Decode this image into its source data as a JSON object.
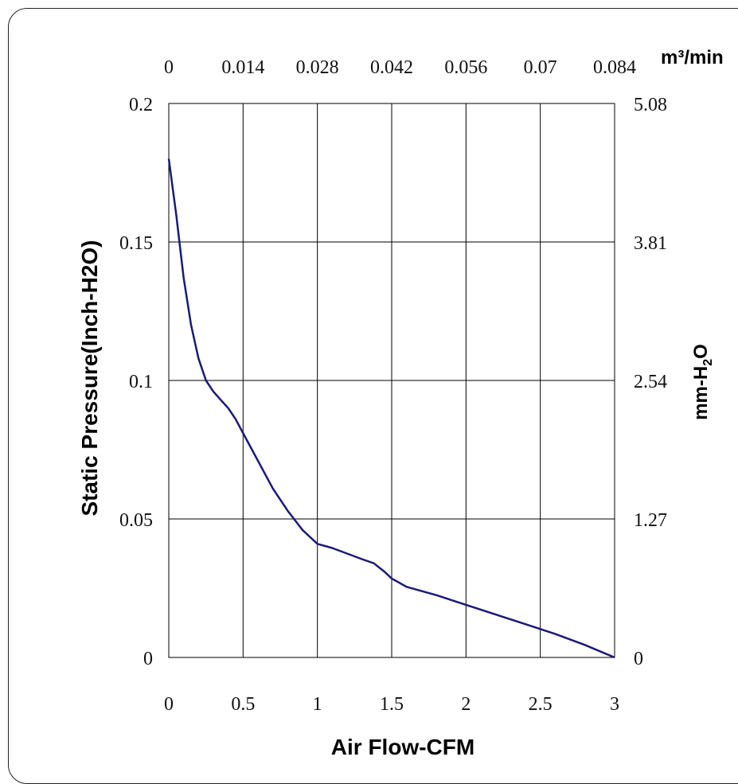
{
  "chart_data": {
    "type": "line",
    "xlabel": "Air Flow-CFM",
    "ylabel": "Static Pressure(Inch-H2O)",
    "x2label": "m³/min",
    "y2label_parts": [
      "mm-H",
      "2",
      "O"
    ],
    "xlim": [
      0,
      3
    ],
    "ylim": [
      0,
      0.2
    ],
    "x_ticks": [
      "0",
      "0.5",
      "1",
      "1.5",
      "2",
      "2.5",
      "3"
    ],
    "y_ticks": [
      "0",
      "0.05",
      "0.1",
      "0.15",
      "0.2"
    ],
    "x2_ticks": [
      "0",
      "0.014",
      "0.028",
      "0.042",
      "0.056",
      "0.07",
      "0.084"
    ],
    "y2_ticks": [
      "0",
      "1.27",
      "2.54",
      "3.81",
      "5.08"
    ],
    "grid": true,
    "line_color": "#1a1a7a",
    "series": [
      {
        "x": [
          0,
          0.05,
          0.1,
          0.15,
          0.2,
          0.25,
          0.3,
          0.35,
          0.4,
          0.45,
          0.5,
          0.6,
          0.7,
          0.8,
          0.9,
          1.0,
          1.1,
          1.2,
          1.3,
          1.38,
          1.45,
          1.5,
          1.6,
          1.8,
          2.0,
          2.2,
          2.4,
          2.6,
          2.8,
          3.0
        ],
        "y": [
          0.18,
          0.16,
          0.137,
          0.12,
          0.108,
          0.1,
          0.096,
          0.093,
          0.09,
          0.086,
          0.081,
          0.071,
          0.061,
          0.053,
          0.046,
          0.041,
          0.0395,
          0.0375,
          0.0355,
          0.034,
          0.031,
          0.0285,
          0.0255,
          0.0225,
          0.019,
          0.0155,
          0.012,
          0.0085,
          0.0045,
          0.0
        ]
      }
    ]
  }
}
